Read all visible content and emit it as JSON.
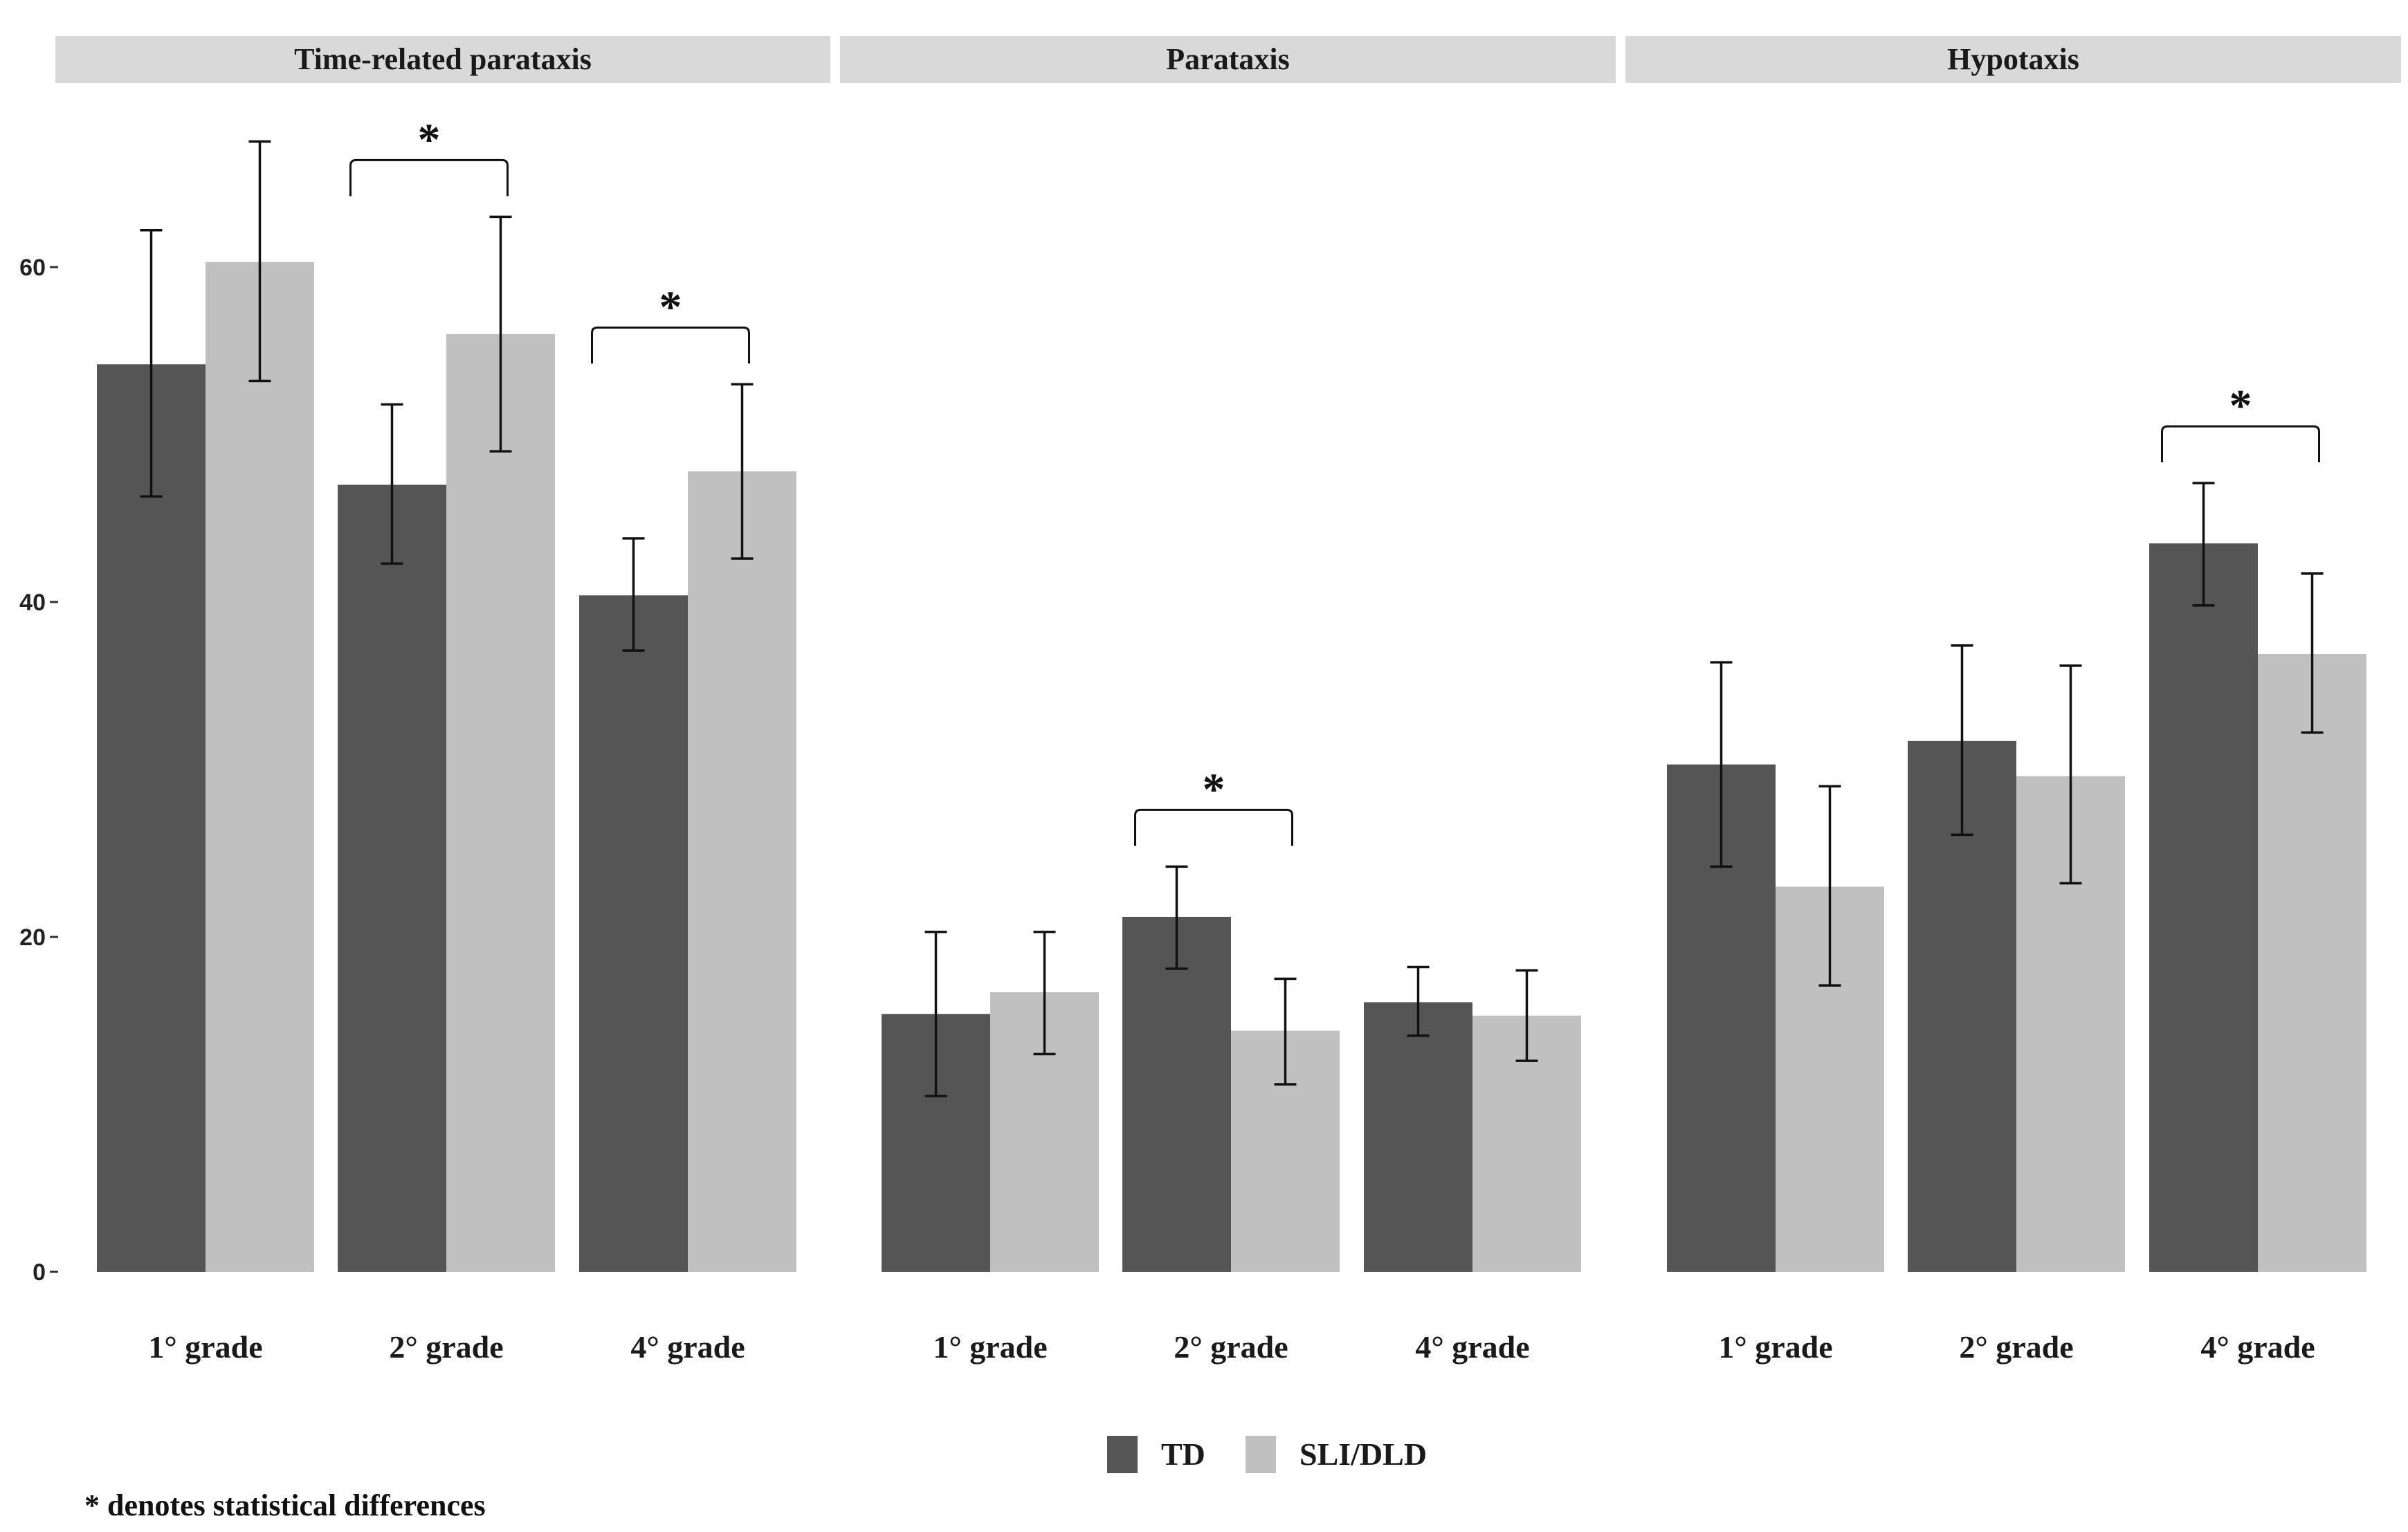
{
  "chart_data": {
    "type": "bar",
    "series": [
      {
        "name": "TD",
        "color": "#555555"
      },
      {
        "name": "SLI/DLD",
        "color": "#c0c0c0"
      }
    ],
    "yticks": [
      0,
      20,
      40,
      60
    ],
    "yticklabels": [
      "0",
      "20",
      "40",
      "60"
    ],
    "ylim": [
      0,
      68
    ],
    "legend_position": "bottom",
    "significance_symbol": "*",
    "note": "* denotes statistical differences",
    "panels": [
      {
        "title": "Time-related parataxis",
        "categories": [
          "1° grade",
          "2° grade",
          "4° grade"
        ],
        "values": {
          "TD": [
            54.2,
            47.0,
            40.4
          ],
          "SLI/DLD": [
            60.3,
            56.0,
            47.8
          ]
        },
        "errors": {
          "TD": [
            [
              46.3,
              62.2
            ],
            [
              42.3,
              51.8
            ],
            [
              37.1,
              43.8
            ]
          ],
          "SLI/DLD": [
            [
              53.2,
              67.5
            ],
            [
              49.0,
              63.0
            ],
            [
              42.6,
              53.0
            ]
          ]
        },
        "significant": [
          false,
          true,
          true
        ]
      },
      {
        "title": "Parataxis",
        "categories": [
          "1° grade",
          "2° grade",
          "4° grade"
        ],
        "values": {
          "TD": [
            15.4,
            21.2,
            16.1
          ],
          "SLI/DLD": [
            16.7,
            14.4,
            15.3
          ]
        },
        "errors": {
          "TD": [
            [
              10.5,
              20.3
            ],
            [
              18.1,
              24.2
            ],
            [
              14.1,
              18.2
            ]
          ],
          "SLI/DLD": [
            [
              13.0,
              20.3
            ],
            [
              11.2,
              17.5
            ],
            [
              12.6,
              18.0
            ]
          ]
        },
        "significant": [
          false,
          true,
          false
        ]
      },
      {
        "title": "Hypotaxis",
        "categories": [
          "1° grade",
          "2° grade",
          "4° grade"
        ],
        "values": {
          "TD": [
            30.3,
            31.7,
            43.5
          ],
          "SLI/DLD": [
            23.0,
            29.6,
            36.9
          ]
        },
        "errors": {
          "TD": [
            [
              24.2,
              36.4
            ],
            [
              26.1,
              37.4
            ],
            [
              39.8,
              47.1
            ]
          ],
          "SLI/DLD": [
            [
              17.1,
              29.0
            ],
            [
              23.2,
              36.2
            ],
            [
              32.2,
              41.7
            ]
          ]
        },
        "significant": [
          false,
          false,
          true
        ]
      }
    ]
  }
}
